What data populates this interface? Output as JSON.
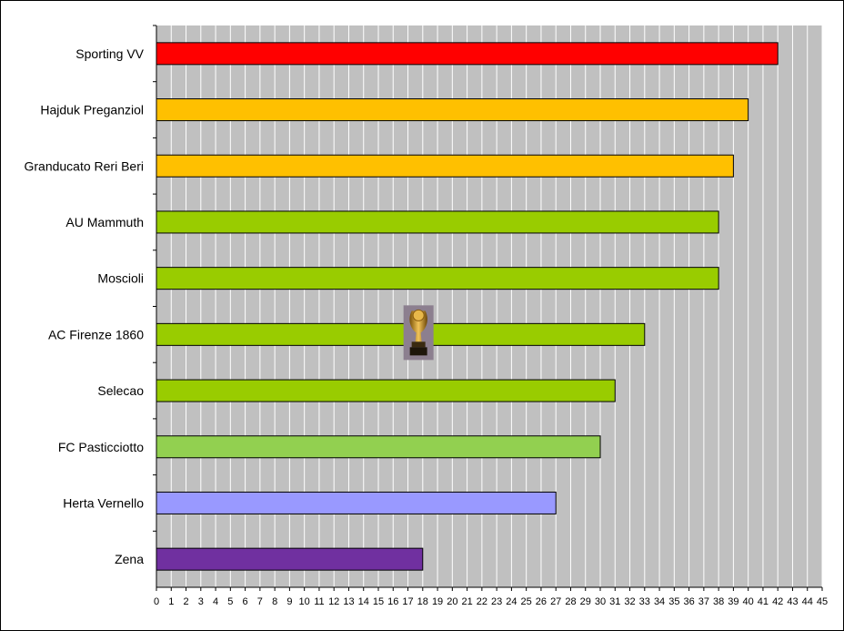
{
  "chart_data": {
    "type": "bar",
    "orientation": "horizontal",
    "categories": [
      "Sporting VV",
      "Hajduk Preganziol",
      "Granducato Reri Beri",
      "AU Mammuth",
      "Moscioli",
      "AC Firenze 1860",
      "Selecao",
      "FC Pasticciotto",
      "Herta Vernello",
      "Zena"
    ],
    "values": [
      42,
      40,
      39,
      38,
      38,
      33,
      31,
      30,
      27,
      18
    ],
    "colors": [
      "#ff0000",
      "#ffc000",
      "#ffc000",
      "#99cc00",
      "#99cc00",
      "#99cc00",
      "#99cc00",
      "#92d050",
      "#9999ff",
      "#7030a0"
    ],
    "title": "",
    "xlabel": "",
    "ylabel": "",
    "xlim": [
      0,
      45
    ],
    "tick_step": 1,
    "grid": true,
    "plot_background": "#c0c0c0",
    "gridline_color": "#ffffff",
    "legend": "none",
    "annotation": "trophy-icon"
  }
}
